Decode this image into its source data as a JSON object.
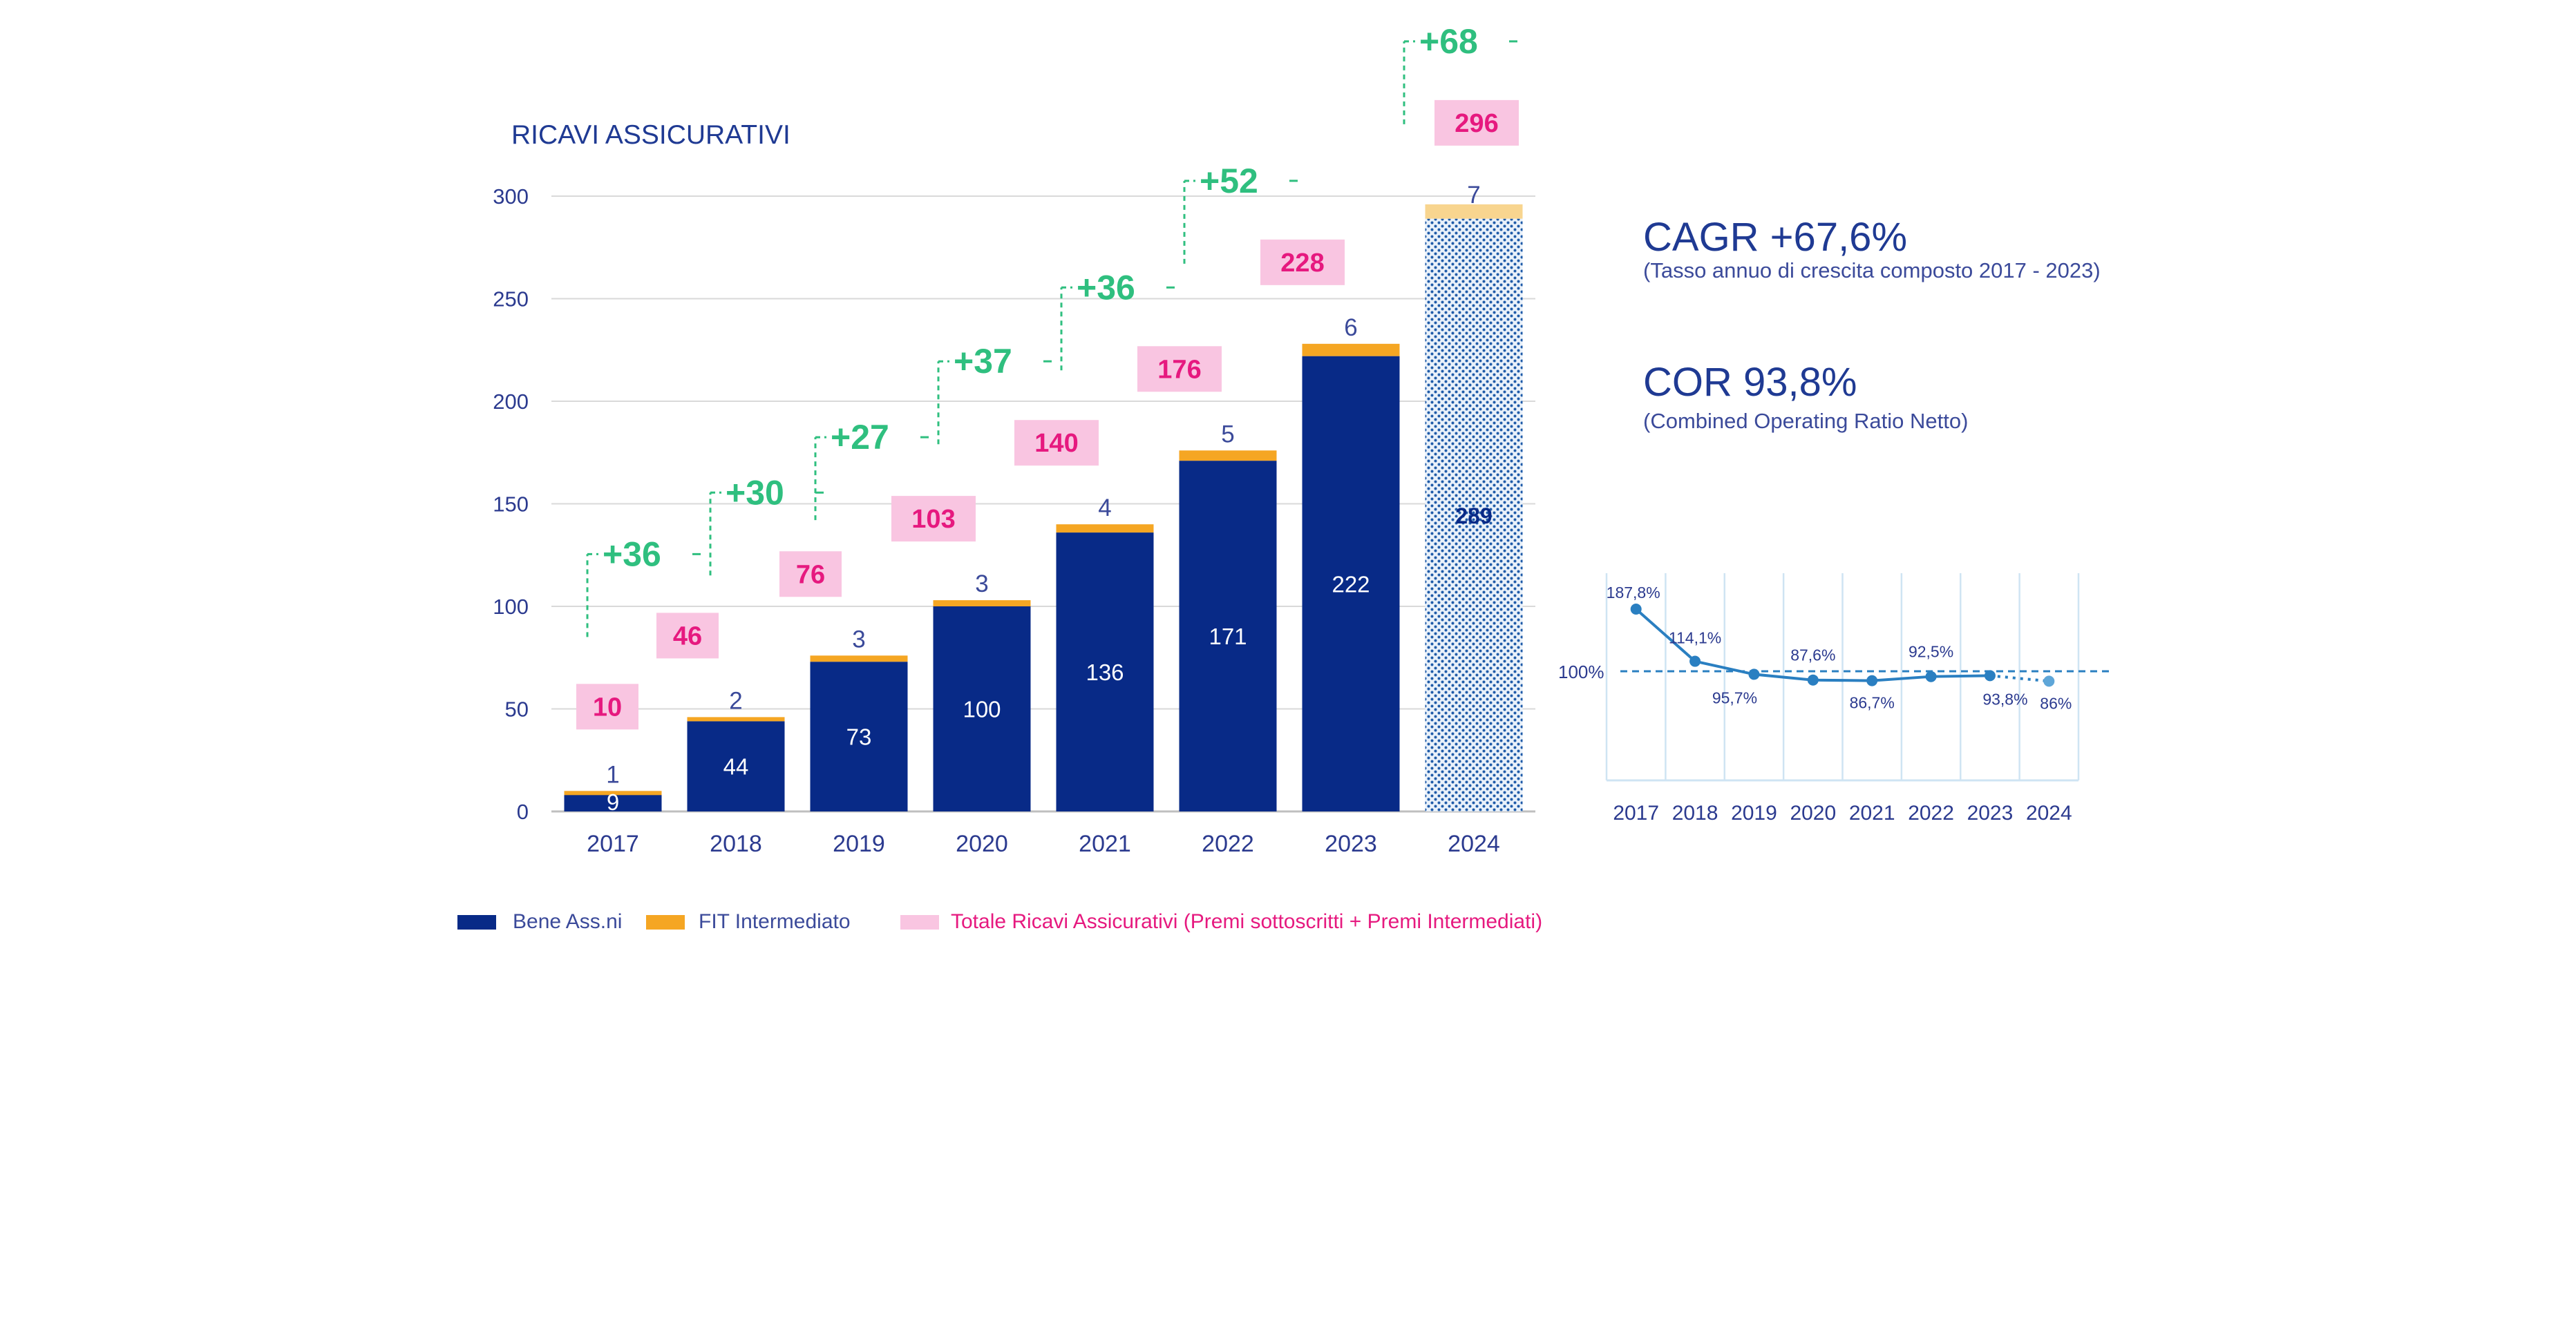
{
  "colors": {
    "navy": "#082a87",
    "orange": "#f5a623",
    "pink_box": "#f9c5e1",
    "pink_text": "#e6197f",
    "green": "#2fbf7f",
    "axis_text": "#2b3a8f",
    "grid": "#d9d9d9",
    "line_blue": "#2a7fc1",
    "hatch_fill": "#bfd6ee",
    "light_orange": "#f8d58f"
  },
  "chart_data": [
    {
      "type": "bar",
      "title": "RICAVI ASSICURATIVI",
      "categories": [
        "2017",
        "2018",
        "2019",
        "2020",
        "2021",
        "2022",
        "2023",
        "2024"
      ],
      "ylim": [
        0,
        300
      ],
      "yticks": [
        "0",
        "50",
        "100",
        "150",
        "200",
        "250",
        "300"
      ],
      "grid": true,
      "series": [
        {
          "name": "Bene Ass.ni",
          "color": "#082a87",
          "values": [
            9,
            44,
            73,
            100,
            136,
            171,
            222,
            289
          ]
        },
        {
          "name": "FIT Intermediato",
          "color": "#f5a623",
          "values": [
            1,
            2,
            3,
            3,
            4,
            5,
            6,
            7
          ]
        }
      ],
      "totals": {
        "name": "Totale Ricavi Assicurativi (Premi sottoscritti + Premi Intermediati)",
        "values": [
          "10",
          "46",
          "76",
          "103",
          "140",
          "176",
          "228",
          "296"
        ]
      },
      "increments": [
        "",
        "+36",
        "+30",
        "+27",
        "+37",
        "+36",
        "+52",
        "+68"
      ],
      "forecast_category": "2024",
      "legend_placement": "bottom"
    },
    {
      "type": "line",
      "categories": [
        "2017",
        "2018",
        "2019",
        "2020",
        "2021",
        "2022",
        "2023",
        "2024"
      ],
      "values": [
        187.8,
        114.1,
        95.7,
        87.6,
        86.7,
        92.5,
        93.8,
        86
      ],
      "labels": [
        "187,8%",
        "114,1%",
        "95,7%",
        "87,6%",
        "86,7%",
        "92,5%",
        "93,8%",
        "86%"
      ],
      "reference": {
        "value": 100,
        "label": "100%"
      },
      "grid": true
    }
  ],
  "kpis": [
    {
      "headline": "CAGR +67,6%",
      "subtitle": "(Tasso annuo di crescita composto 2017 - 2023)"
    },
    {
      "headline": "COR 93,8%",
      "subtitle": "(Combined Operating Ratio Netto)"
    }
  ],
  "legend": [
    {
      "label": "Bene Ass.ni",
      "color": "#082a87"
    },
    {
      "label": "FIT Intermediato",
      "color": "#f5a623"
    },
    {
      "label": "Totale Ricavi Assicurativi (Premi sottoscritti + Premi Intermediati)",
      "color": "#f9c5e1",
      "text_color": "#e6197f"
    }
  ]
}
